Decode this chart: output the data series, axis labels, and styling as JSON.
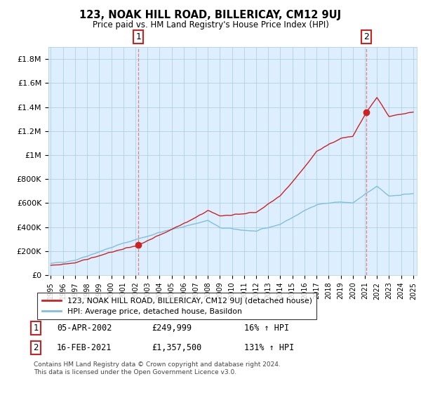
{
  "title": "123, NOAK HILL ROAD, BILLERICAY, CM12 9UJ",
  "subtitle": "Price paid vs. HM Land Registry's House Price Index (HPI)",
  "ylim": [
    0,
    1900000
  ],
  "yticks": [
    0,
    200000,
    400000,
    600000,
    800000,
    1000000,
    1200000,
    1400000,
    1600000,
    1800000
  ],
  "ytick_labels": [
    "£0",
    "£200K",
    "£400K",
    "£600K",
    "£800K",
    "£1M",
    "£1.2M",
    "£1.4M",
    "£1.6M",
    "£1.8M"
  ],
  "sale1_year": 2002.25,
  "sale1_price": 249999,
  "sale2_year": 2021.12,
  "sale2_price": 1357500,
  "hpi_color": "#7fbfdf",
  "price_color": "#cc2222",
  "vline_color": "#e08080",
  "legend_label_price": "123, NOAK HILL ROAD, BILLERICAY, CM12 9UJ (detached house)",
  "legend_label_hpi": "HPI: Average price, detached house, Basildon",
  "annotation1_label": "1",
  "annotation1_date": "05-APR-2002",
  "annotation1_price": "£249,999",
  "annotation1_hpi": "16% ↑ HPI",
  "annotation2_label": "2",
  "annotation2_date": "16-FEB-2021",
  "annotation2_price": "£1,357,500",
  "annotation2_hpi": "131% ↑ HPI",
  "footnote": "Contains HM Land Registry data © Crown copyright and database right 2024.\nThis data is licensed under the Open Government Licence v3.0.",
  "plot_bg_color": "#ddeeff",
  "fig_bg_color": "#ffffff",
  "grid_color": "#aaccdd"
}
